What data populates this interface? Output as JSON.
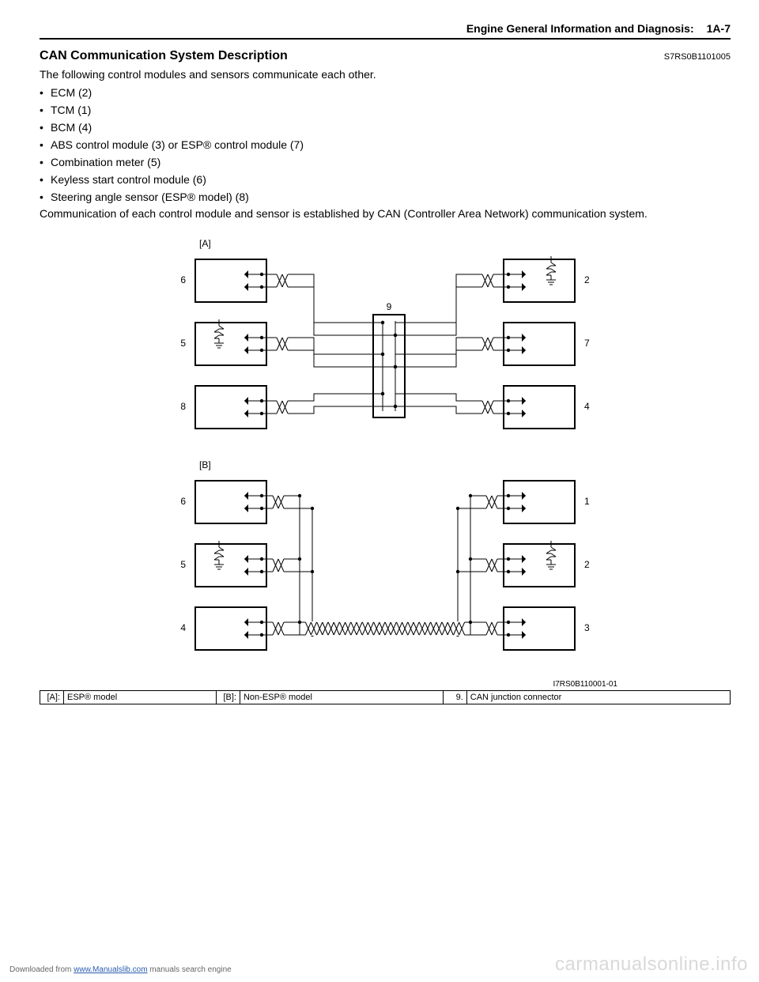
{
  "header": {
    "title": "Engine General Information and Diagnosis:",
    "page": "1A-7"
  },
  "section": {
    "title": "CAN Communication System Description",
    "doc_id": "S7RS0B1101005"
  },
  "intro": "The following control modules and sensors communicate each other.",
  "modules": [
    "ECM (2)",
    "TCM (1)",
    "BCM (4)",
    "ABS control module (3) or ESP® control module (7)",
    "Combination meter (5)",
    "Keyless start control module (6)",
    "Steering angle sensor (ESP® model) (8)"
  ],
  "paragraph": "Communication of each control module and sensor is established by CAN (Controller Area Network) communication system.",
  "figure_id": "I7RS0B110001-01",
  "legend": [
    {
      "key": "[A]:",
      "val": "ESP® model"
    },
    {
      "key": "[B]:",
      "val": "Non-ESP® model"
    },
    {
      "key": "9.",
      "val": "CAN junction connector"
    }
  ],
  "diagramA": {
    "label": "[A]",
    "left_labels": [
      "6",
      "5",
      "8"
    ],
    "right_labels": [
      "2",
      "7",
      "4"
    ],
    "center_label": "9"
  },
  "diagramB": {
    "label": "[B]",
    "left_labels": [
      "6",
      "5",
      "4"
    ],
    "right_labels": [
      "1",
      "2",
      "3"
    ]
  },
  "footer": {
    "prefix": "Downloaded from ",
    "link_text": "www.Manualslib.com",
    "suffix": " manuals search engine"
  },
  "watermark": "carmanualsonline.info",
  "style": {
    "box_stroke": "#000000",
    "box_stroke_w": 2,
    "wire_stroke": "#000000",
    "wire_w": 1,
    "font_family": "Arial",
    "label_fs": 12
  }
}
